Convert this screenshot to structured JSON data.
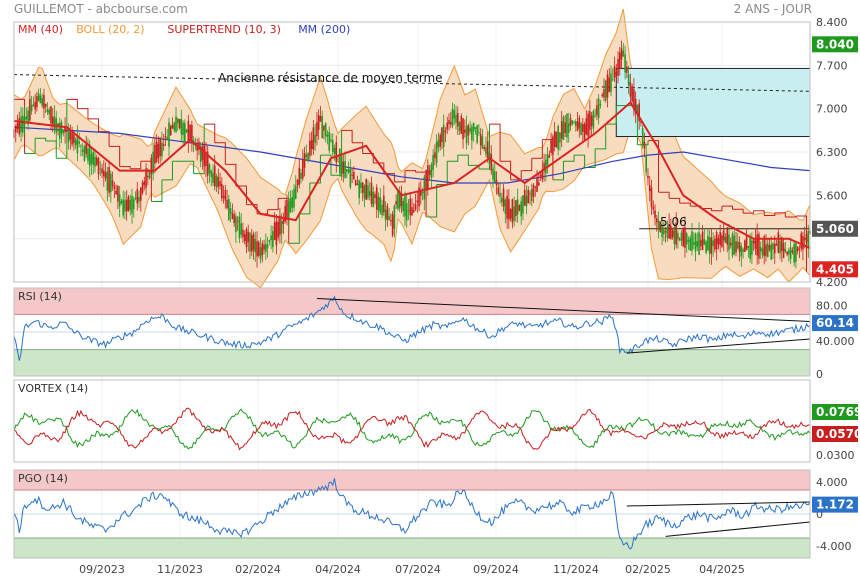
{
  "header": {
    "title": "GUILLEMOT - abcbourse.com",
    "period": "2 ANS - JOUR"
  },
  "colors": {
    "red": "#dd2222",
    "orange": "#f29a3a",
    "boll_fill": "#f7dcc0",
    "ma200": "#2f3fc0",
    "green": "#1f9a1f",
    "blue": "#2a73c8",
    "dark_red": "#c81e1e",
    "box_fill": "#c8eef0"
  },
  "chart_data": [
    {
      "type": "candlestick",
      "legend": [
        {
          "label": "MM (40)",
          "color": "#dd2222"
        },
        {
          "label": "BOLL (20, 2)",
          "color": "#f29a3a"
        },
        {
          "label": "SUPERTREND (10, 3)",
          "color": "#c81e1e"
        },
        {
          "label": "MM (200)",
          "color": "#2f3fc0"
        }
      ],
      "y_ticks": [
        "8.400",
        "7.700",
        "7.000",
        "6.300",
        "5.600",
        "5.060",
        "4.200"
      ],
      "ylim": [
        4.2,
        8.4
      ],
      "x_ticks": [
        "09/2023",
        "11/2023",
        "02/2024",
        "04/2024",
        "07/2024",
        "09/2024",
        "11/2024",
        "02/2025",
        "04/2025"
      ],
      "last_price": "5.060",
      "badges": [
        {
          "text": "8.040",
          "value": 8.04,
          "color": "#1f9a1f"
        },
        {
          "text": "5.060",
          "value": 5.06,
          "color": "#555555"
        },
        {
          "text": "4.405",
          "value": 4.405,
          "color": "#dd2222"
        }
      ],
      "annotations": {
        "resistance_label": "Ancienne résistance de moyen terme",
        "support_label": "5.06"
      },
      "close_path": [
        [
          0,
          6.6
        ],
        [
          8,
          6.9
        ],
        [
          15,
          7.2
        ],
        [
          22,
          6.8
        ],
        [
          30,
          6.6
        ],
        [
          38,
          6.4
        ],
        [
          45,
          6.2
        ],
        [
          55,
          5.8
        ],
        [
          62,
          5.4
        ],
        [
          72,
          5.6
        ],
        [
          80,
          6.2
        ],
        [
          92,
          6.8
        ],
        [
          100,
          6.6
        ],
        [
          108,
          6.2
        ],
        [
          116,
          5.8
        ],
        [
          124,
          5.3
        ],
        [
          132,
          4.9
        ],
        [
          140,
          4.7
        ],
        [
          150,
          5.0
        ],
        [
          158,
          5.5
        ],
        [
          166,
          6.2
        ],
        [
          174,
          6.8
        ],
        [
          178,
          6.6
        ],
        [
          186,
          6.1
        ],
        [
          195,
          5.8
        ],
        [
          203,
          5.6
        ],
        [
          210,
          5.4
        ],
        [
          215,
          5.1
        ],
        [
          218,
          5.6
        ],
        [
          226,
          5.3
        ],
        [
          234,
          5.8
        ],
        [
          242,
          6.5
        ],
        [
          250,
          6.9
        ],
        [
          256,
          6.6
        ],
        [
          262,
          6.7
        ],
        [
          270,
          6.2
        ],
        [
          276,
          5.6
        ],
        [
          282,
          5.3
        ],
        [
          290,
          5.5
        ],
        [
          298,
          5.8
        ],
        [
          306,
          6.4
        ],
        [
          312,
          6.7
        ],
        [
          318,
          6.8
        ],
        [
          324,
          6.6
        ],
        [
          330,
          6.9
        ],
        [
          336,
          7.3
        ],
        [
          342,
          7.6
        ],
        [
          346,
          7.9
        ],
        [
          350,
          7.3
        ],
        [
          356,
          6.8
        ],
        [
          362,
          5.5
        ],
        [
          366,
          5.1
        ],
        [
          372,
          5.0
        ],
        [
          380,
          4.9
        ],
        [
          388,
          4.85
        ],
        [
          396,
          4.8
        ],
        [
          404,
          4.9
        ],
        [
          412,
          4.75
        ],
        [
          420,
          4.8
        ],
        [
          428,
          4.7
        ],
        [
          434,
          4.8
        ],
        [
          440,
          4.65
        ],
        [
          446,
          4.75
        ],
        [
          452,
          5.0
        ]
      ],
      "ma40_path": [
        [
          0,
          6.8
        ],
        [
          30,
          6.7
        ],
        [
          60,
          6.0
        ],
        [
          80,
          6.0
        ],
        [
          100,
          6.5
        ],
        [
          120,
          6.0
        ],
        [
          140,
          5.3
        ],
        [
          160,
          5.2
        ],
        [
          180,
          6.2
        ],
        [
          200,
          6.4
        ],
        [
          220,
          5.6
        ],
        [
          250,
          5.8
        ],
        [
          270,
          6.2
        ],
        [
          290,
          5.8
        ],
        [
          310,
          6.2
        ],
        [
          330,
          6.6
        ],
        [
          350,
          7.1
        ],
        [
          365,
          6.4
        ],
        [
          380,
          5.6
        ],
        [
          400,
          5.2
        ],
        [
          420,
          4.9
        ],
        [
          440,
          4.9
        ],
        [
          452,
          4.75
        ]
      ],
      "ma200_path": [
        [
          0,
          6.7
        ],
        [
          60,
          6.6
        ],
        [
          100,
          6.45
        ],
        [
          140,
          6.3
        ],
        [
          180,
          6.1
        ],
        [
          220,
          5.9
        ],
        [
          250,
          5.8
        ],
        [
          280,
          5.8
        ],
        [
          310,
          5.95
        ],
        [
          340,
          6.15
        ],
        [
          360,
          6.25
        ],
        [
          380,
          6.3
        ],
        [
          400,
          6.2
        ],
        [
          430,
          6.05
        ],
        [
          452,
          6.0
        ]
      ],
      "resistance_line": [
        [
          0,
          7.55
        ],
        [
          452,
          7.28
        ]
      ],
      "support_line": [
        [
          355,
          5.06
        ],
        [
          452,
          5.06
        ]
      ],
      "box": {
        "x": [
          342,
          452
        ],
        "y": [
          6.55,
          7.65
        ]
      }
    },
    {
      "type": "line",
      "name": "RSI (14)",
      "y_ticks": [
        "80.00",
        "60.14",
        "40.000",
        "0"
      ],
      "ylim": [
        0,
        100
      ],
      "last_value": "60.14",
      "zones": {
        "upper": 70,
        "lower": 30
      },
      "rsi_path": [
        [
          0,
          45
        ],
        [
          3,
          15
        ],
        [
          6,
          55
        ],
        [
          12,
          62
        ],
        [
          20,
          55
        ],
        [
          28,
          60
        ],
        [
          36,
          48
        ],
        [
          44,
          40
        ],
        [
          52,
          36
        ],
        [
          60,
          44
        ],
        [
          68,
          50
        ],
        [
          76,
          64
        ],
        [
          84,
          68
        ],
        [
          92,
          55
        ],
        [
          100,
          50
        ],
        [
          108,
          45
        ],
        [
          116,
          40
        ],
        [
          124,
          36
        ],
        [
          132,
          35
        ],
        [
          140,
          38
        ],
        [
          148,
          45
        ],
        [
          156,
          55
        ],
        [
          164,
          62
        ],
        [
          172,
          72
        ],
        [
          178,
          82
        ],
        [
          182,
          88
        ],
        [
          188,
          70
        ],
        [
          194,
          66
        ],
        [
          200,
          60
        ],
        [
          208,
          55
        ],
        [
          216,
          45
        ],
        [
          222,
          40
        ],
        [
          230,
          50
        ],
        [
          238,
          58
        ],
        [
          246,
          55
        ],
        [
          254,
          66
        ],
        [
          260,
          58
        ],
        [
          266,
          50
        ],
        [
          272,
          45
        ],
        [
          278,
          55
        ],
        [
          286,
          60
        ],
        [
          294,
          55
        ],
        [
          302,
          60
        ],
        [
          310,
          62
        ],
        [
          318,
          55
        ],
        [
          326,
          60
        ],
        [
          334,
          62
        ],
        [
          340,
          70
        ],
        [
          344,
          30
        ],
        [
          350,
          28
        ],
        [
          358,
          40
        ],
        [
          366,
          42
        ],
        [
          374,
          35
        ],
        [
          382,
          42
        ],
        [
          390,
          45
        ],
        [
          398,
          40
        ],
        [
          406,
          48
        ],
        [
          414,
          44
        ],
        [
          422,
          50
        ],
        [
          430,
          48
        ],
        [
          440,
          52
        ],
        [
          448,
          55
        ],
        [
          452,
          60
        ]
      ],
      "upper_trend": [
        [
          172,
          88
        ],
        [
          452,
          62
        ]
      ],
      "lower_trend": [
        [
          348,
          26
        ],
        [
          452,
          42
        ]
      ]
    },
    {
      "type": "line",
      "name": "VORTEX (14)",
      "y_ticks": [
        "0.0769",
        "0.0570",
        "0.0300"
      ],
      "last_values": [
        "0.0769",
        "0.0570"
      ],
      "ylim": [
        0.02,
        0.14
      ]
    },
    {
      "type": "line",
      "name": "PGO (14)",
      "y_ticks": [
        "4.000",
        "1.172",
        "0",
        "-4.000"
      ],
      "ylim": [
        -5.5,
        5.5
      ],
      "last_value": "1.172",
      "zones": {
        "upper": 3,
        "lower": -3
      },
      "pgo_path": [
        [
          0,
          0.5
        ],
        [
          3,
          -2
        ],
        [
          6,
          1
        ],
        [
          12,
          2
        ],
        [
          20,
          0.5
        ],
        [
          28,
          1.5
        ],
        [
          36,
          -0.5
        ],
        [
          44,
          -1.5
        ],
        [
          52,
          -2
        ],
        [
          60,
          -0.5
        ],
        [
          68,
          0.5
        ],
        [
          76,
          2
        ],
        [
          84,
          2.5
        ],
        [
          92,
          0.5
        ],
        [
          100,
          -0.5
        ],
        [
          108,
          -1
        ],
        [
          116,
          -2
        ],
        [
          124,
          -2.5
        ],
        [
          132,
          -2.2
        ],
        [
          140,
          -1
        ],
        [
          148,
          0.5
        ],
        [
          156,
          1.5
        ],
        [
          164,
          2.5
        ],
        [
          172,
          3
        ],
        [
          178,
          3.5
        ],
        [
          182,
          4
        ],
        [
          188,
          1.5
        ],
        [
          194,
          0.5
        ],
        [
          200,
          0
        ],
        [
          208,
          -0.5
        ],
        [
          216,
          -1.5
        ],
        [
          222,
          -2
        ],
        [
          230,
          0
        ],
        [
          238,
          1.5
        ],
        [
          246,
          1
        ],
        [
          254,
          3
        ],
        [
          260,
          1
        ],
        [
          266,
          -0.5
        ],
        [
          272,
          -1
        ],
        [
          278,
          0.5
        ],
        [
          286,
          1.5
        ],
        [
          294,
          0.5
        ],
        [
          302,
          1
        ],
        [
          310,
          1.2
        ],
        [
          318,
          0.2
        ],
        [
          326,
          1
        ],
        [
          334,
          1.5
        ],
        [
          340,
          2.5
        ],
        [
          344,
          -3.5
        ],
        [
          350,
          -4
        ],
        [
          358,
          -1.5
        ],
        [
          366,
          -0.5
        ],
        [
          374,
          -1.5
        ],
        [
          382,
          -0.5
        ],
        [
          390,
          0
        ],
        [
          398,
          -0.8
        ],
        [
          406,
          0.5
        ],
        [
          414,
          -0.2
        ],
        [
          422,
          1
        ],
        [
          430,
          0.5
        ],
        [
          440,
          0.8
        ],
        [
          448,
          1
        ],
        [
          452,
          1.2
        ]
      ],
      "upper_trend": [
        [
          348,
          1.0
        ],
        [
          452,
          1.5
        ]
      ],
      "lower_trend": [
        [
          370,
          -2.8
        ],
        [
          452,
          -1.0
        ]
      ]
    }
  ]
}
